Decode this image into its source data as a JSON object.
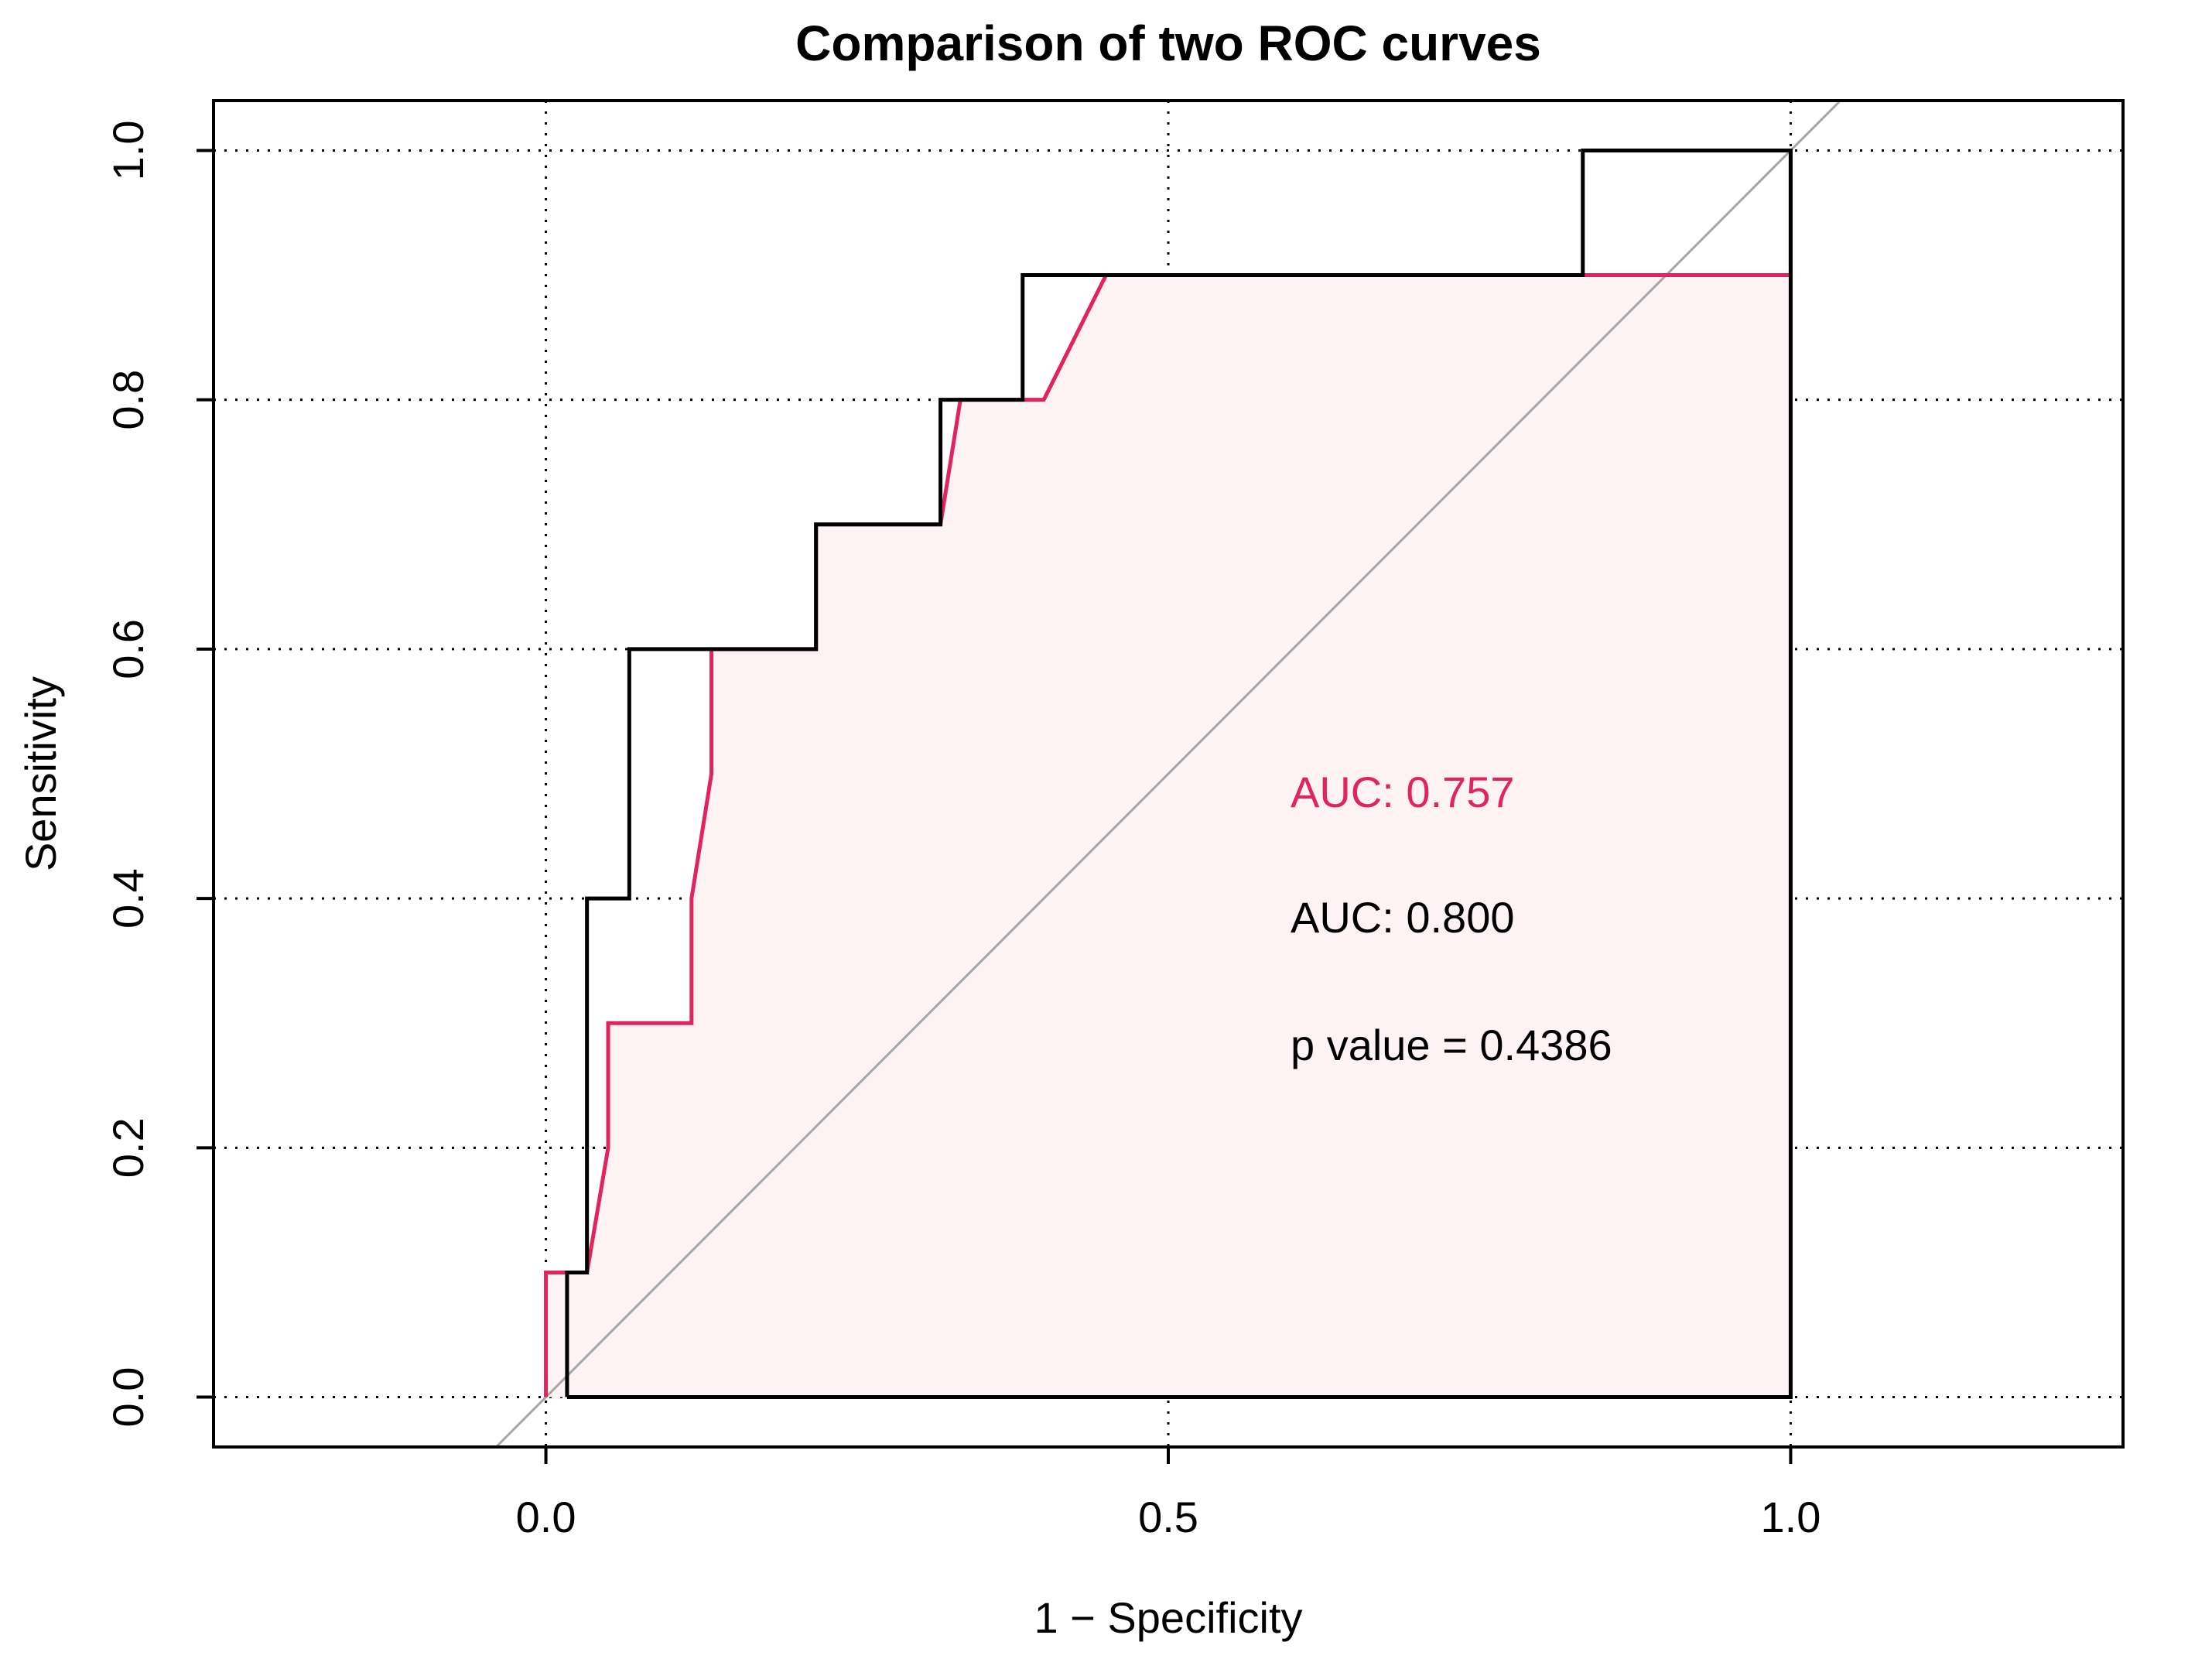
{
  "chart_data": {
    "type": "line",
    "title": "Comparison of two ROC curves",
    "xlabel": "1 − Specificity",
    "ylabel": "Sensitivity",
    "xlim": [
      -0.267,
      1.267
    ],
    "ylim": [
      -0.04,
      1.04
    ],
    "x_ticks": [
      0.0,
      0.5,
      1.0
    ],
    "x_tick_labels": [
      "0.0",
      "0.5",
      "1.0"
    ],
    "y_ticks": [
      0.0,
      0.2,
      0.4,
      0.6,
      0.8,
      1.0
    ],
    "y_tick_labels": [
      "0.0",
      "0.2",
      "0.4",
      "0.6",
      "0.8",
      "1.0"
    ],
    "grid": true,
    "reference_line": {
      "from": [
        -0.04,
        -0.04
      ],
      "to": [
        1.04,
        1.04
      ],
      "color": "#a6a6a6"
    },
    "series": [
      {
        "color": "#e0245e",
        "fill": "#fdf2f4",
        "auc_label": "AUC: 0.757",
        "points": [
          [
            0,
            0
          ],
          [
            0,
            0.1
          ],
          [
            0.033,
            0.1
          ],
          [
            0.05,
            0.2
          ],
          [
            0.05,
            0.3
          ],
          [
            0.117,
            0.3
          ],
          [
            0.117,
            0.4
          ],
          [
            0.133,
            0.5
          ],
          [
            0.133,
            0.6
          ],
          [
            0.217,
            0.6
          ],
          [
            0.217,
            0.7
          ],
          [
            0.317,
            0.7
          ],
          [
            0.333,
            0.8
          ],
          [
            0.4,
            0.8
          ],
          [
            0.45,
            0.9
          ],
          [
            0.833,
            0.9
          ],
          [
            1.0,
            0.9
          ],
          [
            1.0,
            1.0
          ]
        ]
      },
      {
        "color": "#000000",
        "auc_label": "AUC: 0.800",
        "points": [
          [
            0.017,
            0
          ],
          [
            0.017,
            0.1
          ],
          [
            0.033,
            0.1
          ],
          [
            0.033,
            0.4
          ],
          [
            0.067,
            0.4
          ],
          [
            0.067,
            0.6
          ],
          [
            0.217,
            0.6
          ],
          [
            0.217,
            0.7
          ],
          [
            0.317,
            0.7
          ],
          [
            0.317,
            0.8
          ],
          [
            0.383,
            0.8
          ],
          [
            0.383,
            0.9
          ],
          [
            0.833,
            0.9
          ],
          [
            0.833,
            1.0
          ],
          [
            1.0,
            1.0
          ],
          [
            1.0,
            0
          ],
          [
            0.017,
            0
          ]
        ]
      }
    ],
    "annotations": {
      "auc_red": {
        "text": "AUC: 0.757",
        "color": "#e0245e"
      },
      "auc_black": {
        "text": "AUC: 0.800",
        "color": "#000000"
      },
      "p_value": {
        "text": "p value = 0.4386",
        "color": "#000000"
      }
    }
  }
}
